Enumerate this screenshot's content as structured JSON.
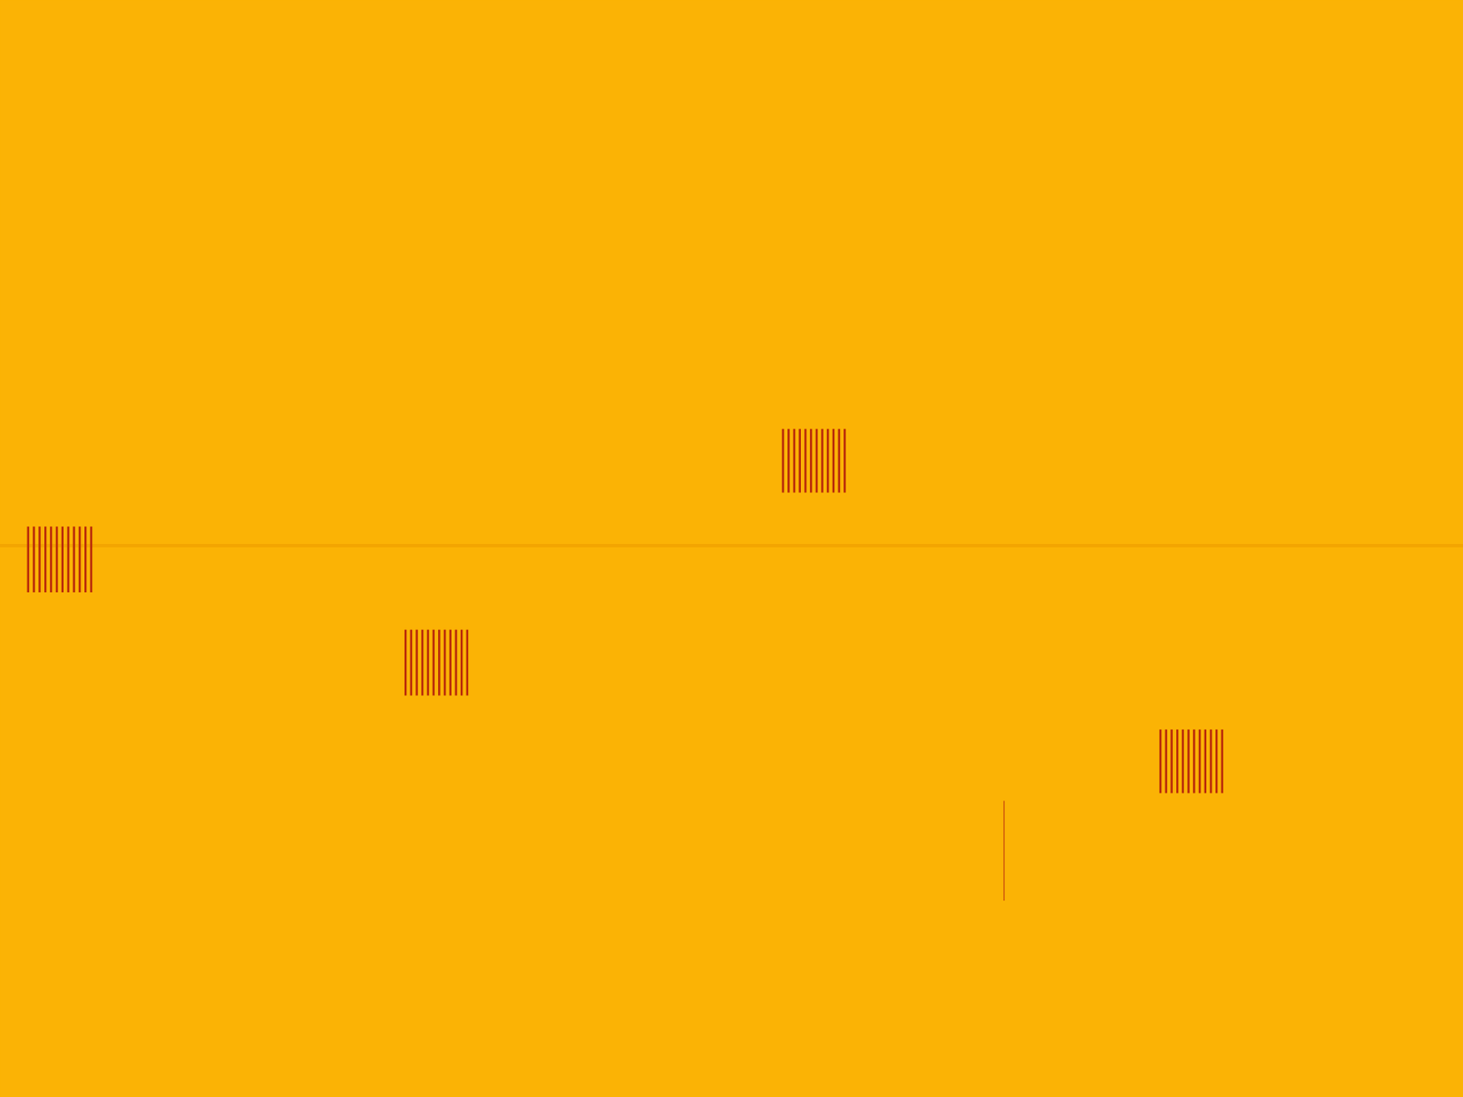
{
  "chart_data": {
    "type": "spectrogram",
    "xlim": [
      0,
      100
    ],
    "ylim": [
      0,
      100
    ],
    "tick_labels": false,
    "grid": false,
    "color": "#fbb305",
    "bursts": [
      {
        "x": [
          1.7,
          6.4
        ],
        "y": [
          46.0,
          52.0
        ],
        "stripes": 12,
        "color": "#b8280a"
      },
      {
        "x": [
          27.5,
          32.1
        ],
        "y": [
          36.6,
          42.6
        ],
        "stripes": 12,
        "color": "#b8280a"
      },
      {
        "x": [
          53.3,
          57.9
        ],
        "y": [
          55.1,
          60.9
        ],
        "stripes": 12,
        "color": "#b8280a"
      },
      {
        "x": [
          79.1,
          83.7
        ],
        "y": [
          27.7,
          33.5
        ],
        "stripes": 12,
        "color": "#b8280a"
      }
    ],
    "hline": {
      "y": 50.3,
      "color": "#f0a000"
    },
    "vline": {
      "x": 68.6,
      "y": [
        17.9,
        27.0
      ],
      "color": "#d5600a"
    }
  }
}
